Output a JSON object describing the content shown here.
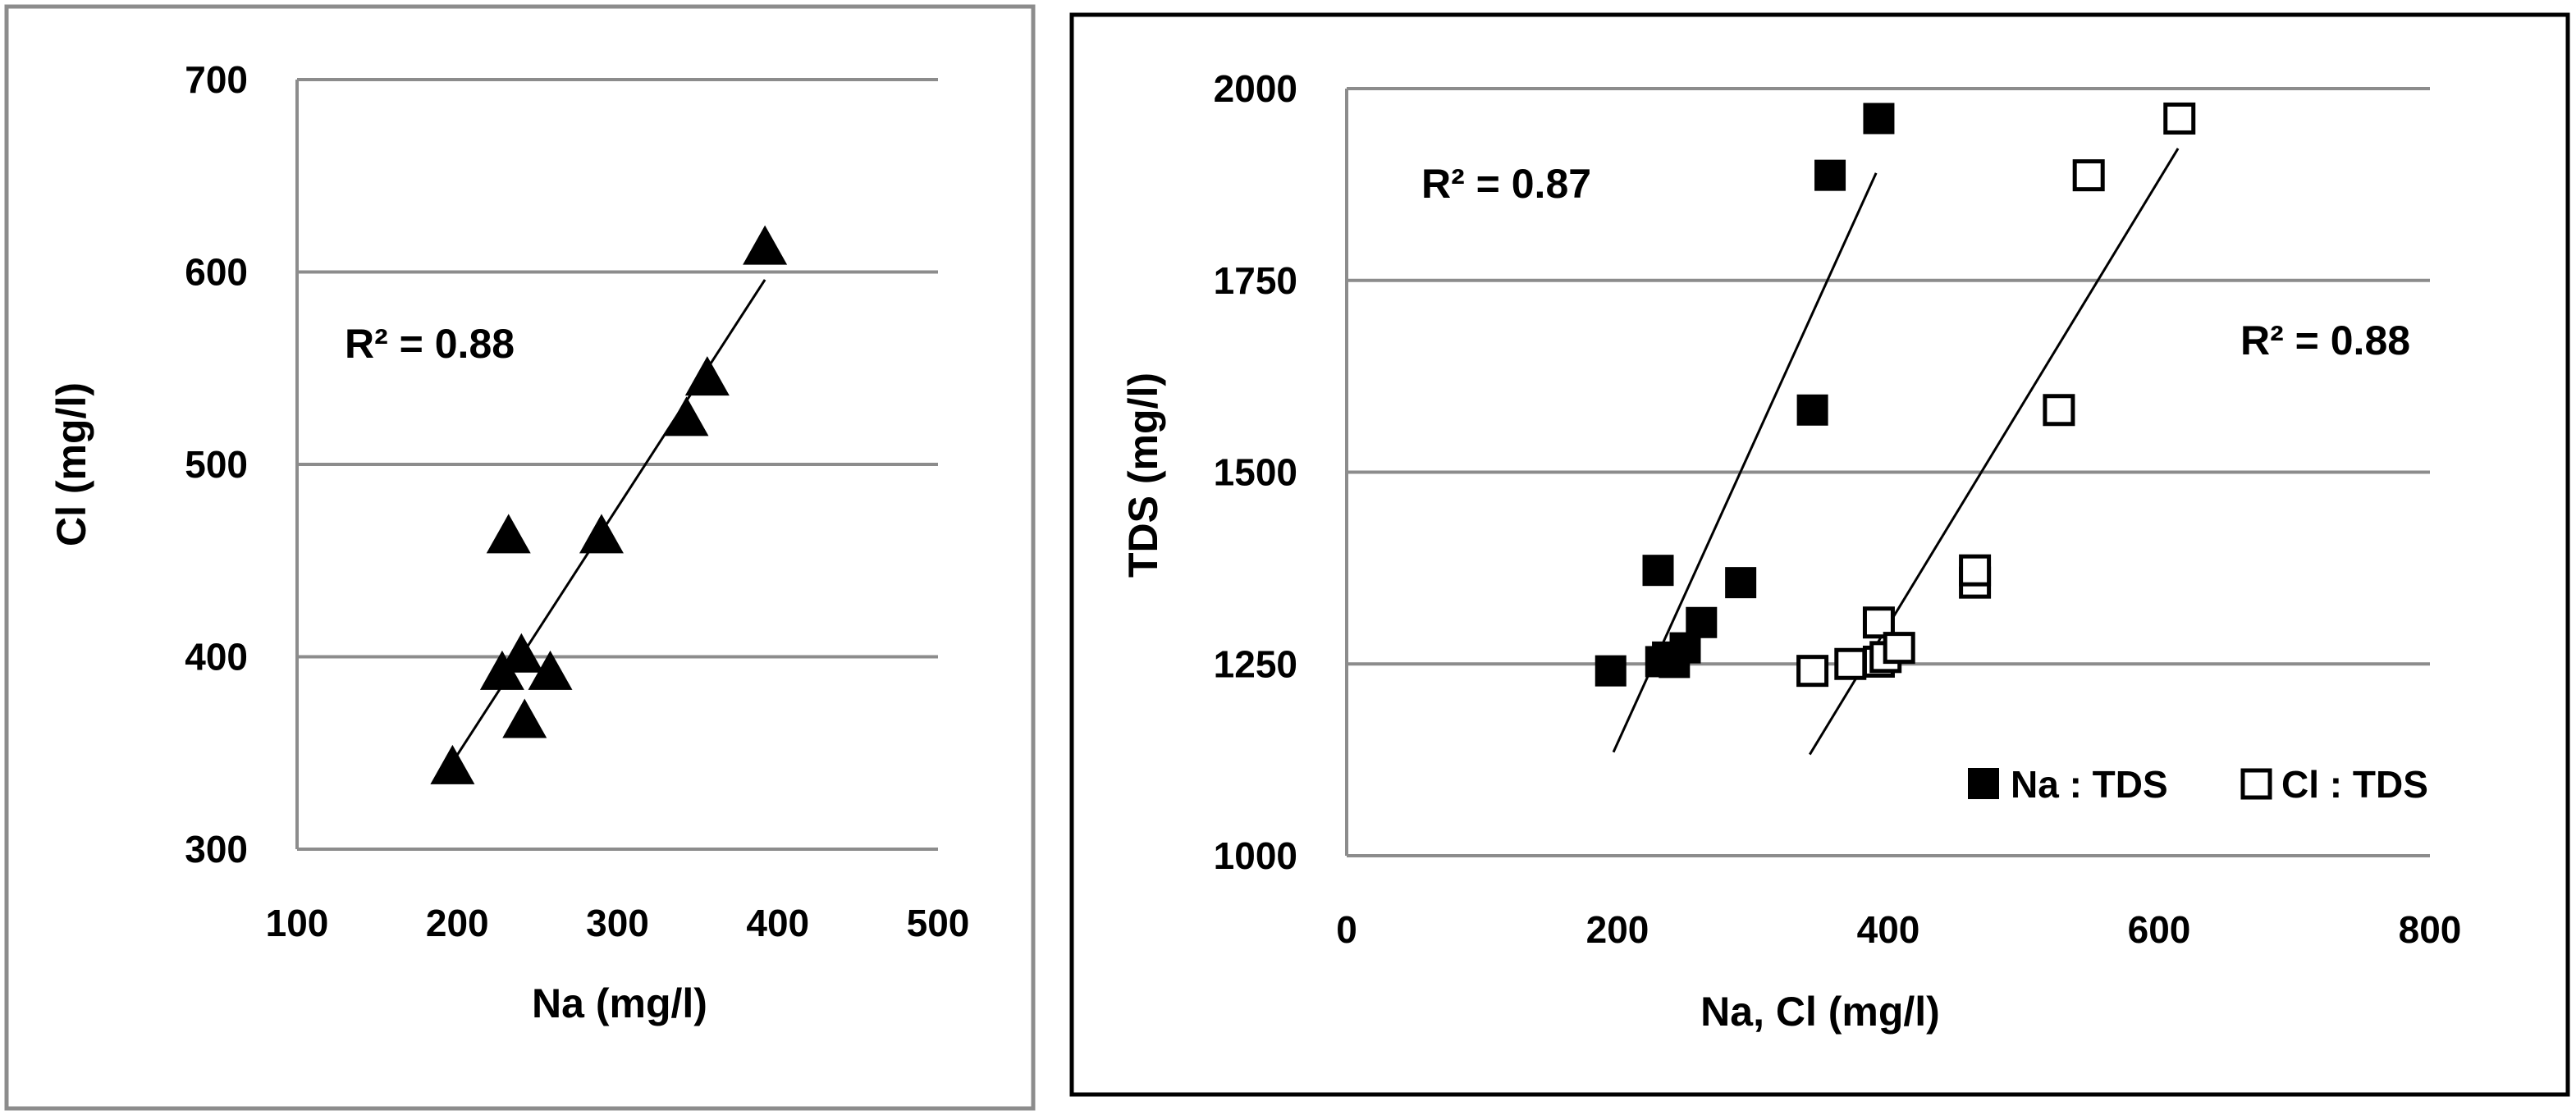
{
  "chart_data": [
    {
      "type": "scatter",
      "xlabel": "Na (mg/l)",
      "ylabel": "Cl (mg/l)",
      "xlim": [
        100,
        500
      ],
      "ylim": [
        300,
        700
      ],
      "xticks": [
        "100",
        "200",
        "300",
        "400",
        "500"
      ],
      "yticks": [
        "300",
        "400",
        "500",
        "600",
        "700"
      ],
      "grid": "horizontal",
      "marker": "filled-triangle",
      "series": [
        {
          "points": [
            {
              "x": 197,
              "y": 344
            },
            {
              "x": 228,
              "y": 393
            },
            {
              "x": 232,
              "y": 464
            },
            {
              "x": 240,
              "y": 402
            },
            {
              "x": 242,
              "y": 368
            },
            {
              "x": 258,
              "y": 393
            },
            {
              "x": 290,
              "y": 464
            },
            {
              "x": 343,
              "y": 525
            },
            {
              "x": 356,
              "y": 546
            },
            {
              "x": 392,
              "y": 614
            }
          ]
        }
      ],
      "trendlines": [
        {
          "x1": 193,
          "y1": 340,
          "x2": 392,
          "y2": 596
        }
      ],
      "annotations": [
        {
          "text": "R² = 0.88"
        }
      ]
    },
    {
      "type": "scatter",
      "xlabel": "Na, Cl (mg/l)",
      "ylabel": "TDS (mg/l)",
      "xlim": [
        0,
        800
      ],
      "ylim": [
        1000,
        2000
      ],
      "xticks": [
        "0",
        "200",
        "400",
        "600",
        "800"
      ],
      "yticks": [
        "1000",
        "1250",
        "1500",
        "1750",
        "2000"
      ],
      "grid": "horizontal",
      "legend_position": "bottom-right",
      "series": [
        {
          "name": "Na : TDS",
          "marker": "filled-square",
          "points": [
            {
              "x": 195,
              "y": 1241
            },
            {
              "x": 230,
              "y": 1372
            },
            {
              "x": 232,
              "y": 1253
            },
            {
              "x": 237,
              "y": 1259
            },
            {
              "x": 242,
              "y": 1252
            },
            {
              "x": 250,
              "y": 1271
            },
            {
              "x": 262,
              "y": 1304
            },
            {
              "x": 291,
              "y": 1356
            },
            {
              "x": 344,
              "y": 1581
            },
            {
              "x": 357,
              "y": 1887
            },
            {
              "x": 393,
              "y": 1961
            }
          ]
        },
        {
          "name": "Cl : TDS",
          "marker": "open-square",
          "points": [
            {
              "x": 344,
              "y": 1241
            },
            {
              "x": 372,
              "y": 1250
            },
            {
              "x": 393,
              "y": 1253
            },
            {
              "x": 393,
              "y": 1304
            },
            {
              "x": 398,
              "y": 1259
            },
            {
              "x": 408,
              "y": 1271
            },
            {
              "x": 464,
              "y": 1356
            },
            {
              "x": 464,
              "y": 1372
            },
            {
              "x": 526,
              "y": 1581
            },
            {
              "x": 548,
              "y": 1887
            },
            {
              "x": 615,
              "y": 1961
            }
          ]
        }
      ],
      "trendlines": [
        {
          "series": "Na : TDS",
          "x1": 197,
          "y1": 1135,
          "x2": 391,
          "y2": 1890
        },
        {
          "series": "Cl : TDS",
          "x1": 342,
          "y1": 1132,
          "x2": 614,
          "y2": 1922
        }
      ],
      "annotations": [
        {
          "text": "R² = 0.87"
        },
        {
          "text": "R² = 0.88"
        }
      ]
    }
  ]
}
